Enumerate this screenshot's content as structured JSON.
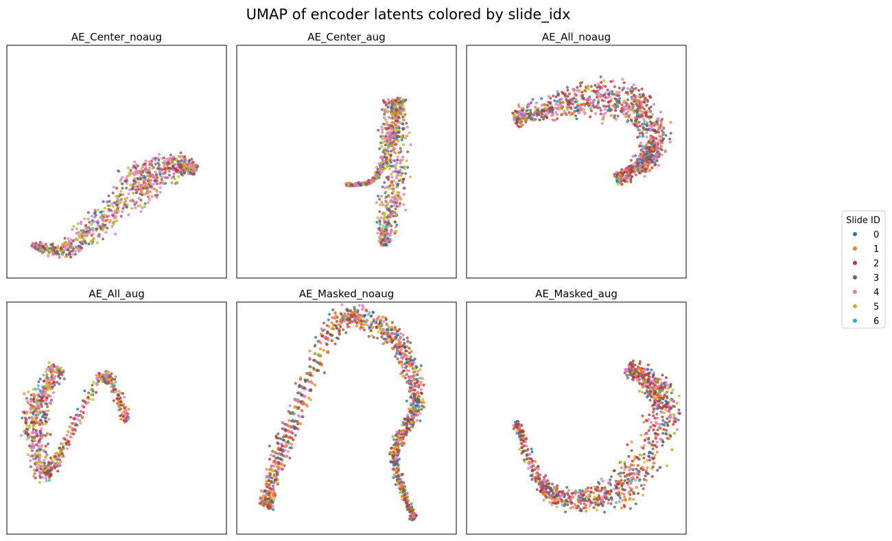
{
  "figure": {
    "title": "UMAP of encoder latents colored by slide_idx"
  },
  "legend": {
    "title": "Slide ID",
    "entries": [
      {
        "label": "0",
        "color": "#1f77b4"
      },
      {
        "label": "1",
        "color": "#ff7f0e"
      },
      {
        "label": "2",
        "color": "#d62728"
      },
      {
        "label": "3",
        "color": "#8c564b"
      },
      {
        "label": "4",
        "color": "#e377c2"
      },
      {
        "label": "5",
        "color": "#bcbd22"
      },
      {
        "label": "6",
        "color": "#17becf"
      }
    ],
    "placement": "center-right"
  },
  "chart_data": [
    {
      "type": "scatter",
      "title": "AE_Center_noaug",
      "xlabel": "",
      "ylabel": "",
      "grid": false,
      "x": [
        1.2,
        2.6,
        4.2,
        5.7,
        6.6,
        7.9,
        8.6
      ],
      "y": [
        1.4,
        1.2,
        2.4,
        3.8,
        4.4,
        4.9,
        4.6
      ]
    },
    {
      "type": "scatter",
      "title": "AE_Center_aug",
      "xlabel": "",
      "ylabel": "",
      "grid": false,
      "x": [
        5.0,
        6.3,
        7.1,
        7.2,
        7.3,
        6.9,
        6.7
      ],
      "y": [
        4.0,
        4.3,
        6.3,
        7.6,
        4.8,
        2.6,
        1.4
      ]
    },
    {
      "type": "scatter",
      "title": "AE_All_noaug",
      "xlabel": "",
      "ylabel": "",
      "grid": false,
      "x": [
        2.2,
        4.2,
        6.2,
        8.0,
        8.6,
        7.8,
        6.8
      ],
      "y": [
        6.8,
        7.4,
        7.8,
        7.2,
        5.6,
        4.8,
        4.2
      ]
    },
    {
      "type": "scatter",
      "title": "AE_All_aug",
      "xlabel": "",
      "ylabel": "",
      "grid": false,
      "x": [
        2.3,
        1.4,
        1.3,
        1.7,
        2.6,
        4.4,
        5.5
      ],
      "y": [
        7.2,
        5.6,
        4.3,
        2.6,
        3.8,
        6.8,
        4.8
      ]
    },
    {
      "type": "scatter",
      "title": "AE_Masked_noaug",
      "xlabel": "",
      "ylabel": "",
      "grid": false,
      "x": [
        1.3,
        2.3,
        4.6,
        7.1,
        8.2,
        7.2,
        8.1
      ],
      "y": [
        1.2,
        4.2,
        9.1,
        8.5,
        5.8,
        3.4,
        0.6
      ]
    },
    {
      "type": "scatter",
      "title": "AE_Masked_aug",
      "xlabel": "",
      "ylabel": "",
      "grid": false,
      "x": [
        2.3,
        3.5,
        5.5,
        7.7,
        9.0,
        8.4,
        7.3
      ],
      "y": [
        4.8,
        2.0,
        1.5,
        2.5,
        5.2,
        6.5,
        7.2
      ]
    }
  ]
}
